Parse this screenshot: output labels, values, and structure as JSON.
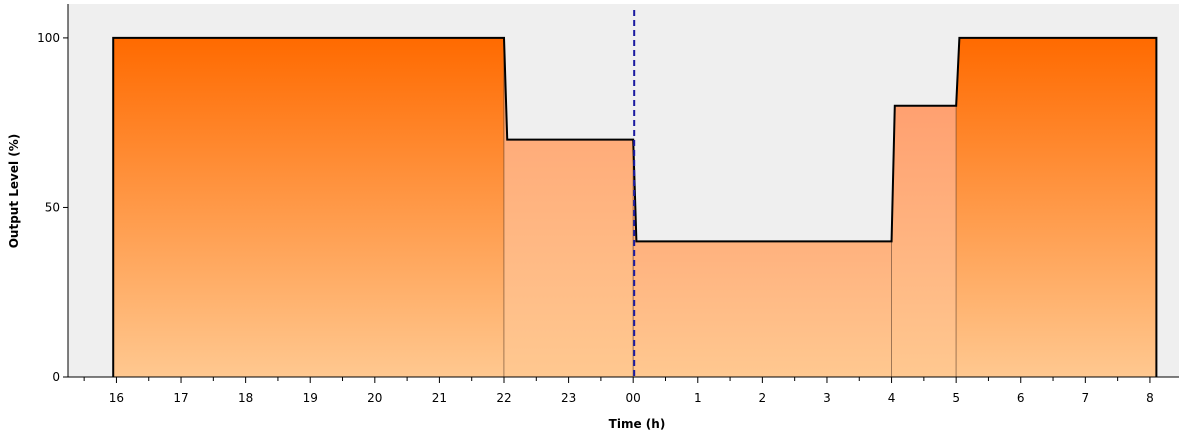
{
  "chart_data": {
    "type": "area",
    "title": "",
    "xlabel": "Time (h)",
    "ylabel": "Output Level (%)",
    "ylim": [
      0,
      110
    ],
    "grid": false,
    "legend": "none",
    "x_ticks": [
      "16",
      "17",
      "18",
      "19",
      "20",
      "21",
      "22",
      "23",
      "00",
      "1",
      "2",
      "3",
      "4",
      "5",
      "6",
      "7",
      "8"
    ],
    "y_ticks": [
      0,
      50,
      100
    ],
    "x_unit": "hours",
    "x_range": [
      15.25,
      32.45
    ],
    "current_time_marker": "00",
    "segments": [
      {
        "start": "16",
        "end": "22",
        "value": 100,
        "level": "full"
      },
      {
        "start": "22",
        "end": "00",
        "value": 70,
        "level": "reduced"
      },
      {
        "start": "00",
        "end": "4",
        "value": 40,
        "level": "reduced"
      },
      {
        "start": "4",
        "end": "5",
        "value": 80,
        "level": "reduced"
      },
      {
        "start": "5",
        "end": "8",
        "value": 100,
        "level": "full"
      }
    ],
    "colors": {
      "plot_background": "#efefef",
      "full_top": "#ff6a00",
      "full_bottom": "#ffc890",
      "reduced_top": "#ffa070",
      "reduced_bottom": "#ffc890",
      "outline": "#000000",
      "marker": "#1a1aa0"
    }
  }
}
